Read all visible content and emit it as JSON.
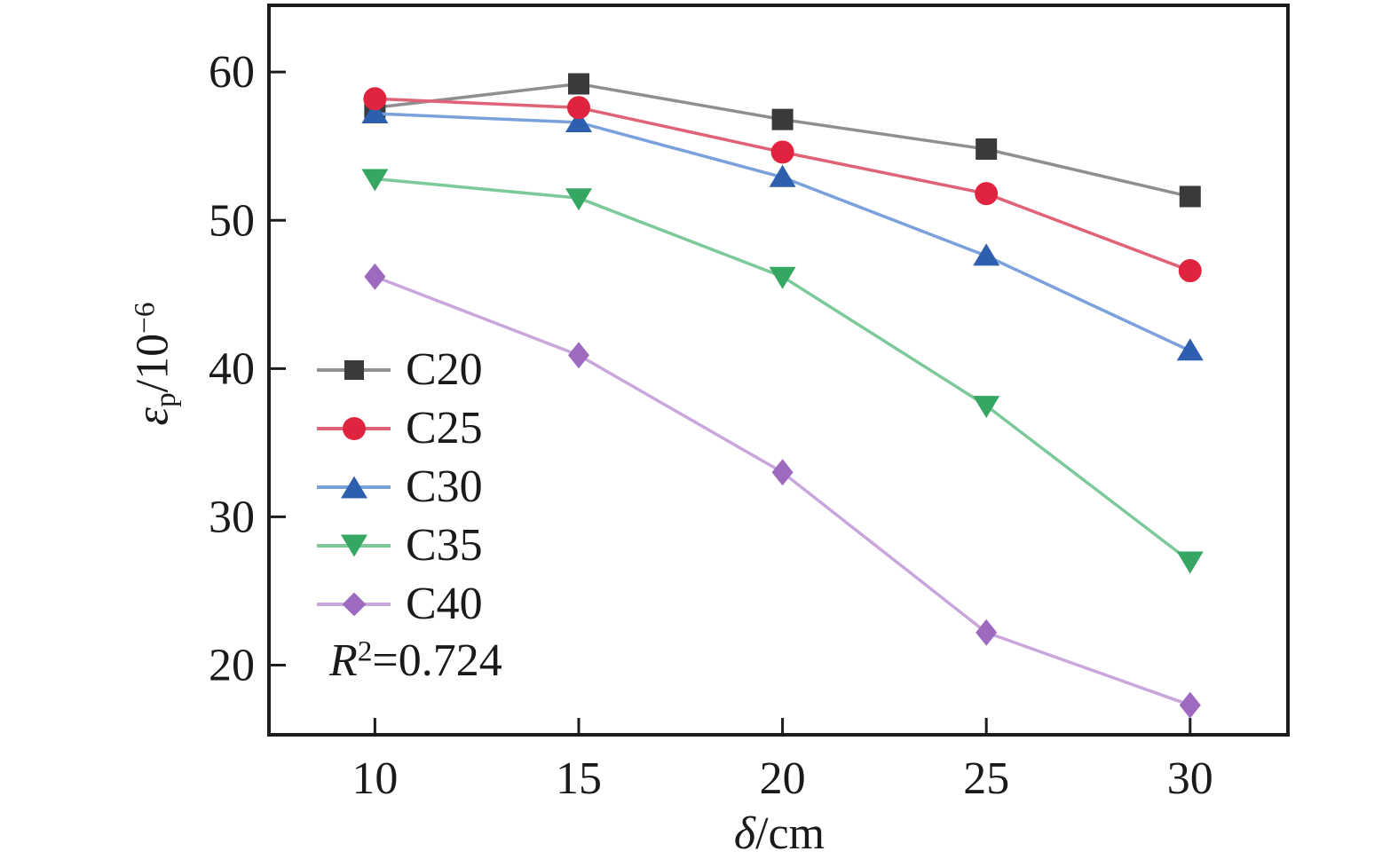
{
  "figure": {
    "background": "#ffffff",
    "axis_color": "#1c1c1c",
    "text_color": "#1a1a1a"
  },
  "labels": {
    "y": {
      "epsilon": "ε",
      "sub": "p",
      "mid": "/10",
      "sup": "−6"
    },
    "x": {
      "italic": "δ",
      "rest": "/cm"
    },
    "annotation": {
      "italic": "R",
      "sup": "2",
      "rest": "=0.724"
    }
  },
  "chart_data": {
    "type": "line",
    "title": "",
    "xlabel": "δ/cm",
    "ylabel": "εp/10−6",
    "annotation": "R²=0.724",
    "grid": false,
    "legend_position": "inside-left",
    "x": [
      10,
      15,
      20,
      25,
      30
    ],
    "x_ticks": [
      10,
      15,
      20,
      25,
      30
    ],
    "y_ticks": [
      20,
      30,
      40,
      50,
      60
    ],
    "xlim": [
      7.4,
      32.4
    ],
    "ylim": [
      15.3,
      64.5
    ],
    "series": [
      {
        "name": "C20",
        "marker": "square",
        "marker_color": "#3a3a3c",
        "line_color": "#8f8f8f",
        "values": [
          57.6,
          59.2,
          56.8,
          54.8,
          51.6
        ]
      },
      {
        "name": "C25",
        "marker": "circle",
        "marker_color": "#e0243f",
        "line_color": "#e06277",
        "values": [
          58.2,
          57.6,
          54.6,
          51.8,
          46.6
        ]
      },
      {
        "name": "C30",
        "marker": "triangle-up",
        "marker_color": "#2d5fae",
        "line_color": "#7ba1dd",
        "values": [
          57.2,
          56.6,
          52.9,
          47.6,
          41.2
        ]
      },
      {
        "name": "C35",
        "marker": "triangle-down",
        "marker_color": "#36a763",
        "line_color": "#7cc99a",
        "values": [
          52.8,
          51.5,
          46.2,
          37.5,
          27.0
        ]
      },
      {
        "name": "C40",
        "marker": "diamond",
        "marker_color": "#9d6ac0",
        "line_color": "#c9a6dc",
        "values": [
          46.2,
          40.9,
          33.0,
          22.2,
          17.3
        ]
      }
    ]
  }
}
